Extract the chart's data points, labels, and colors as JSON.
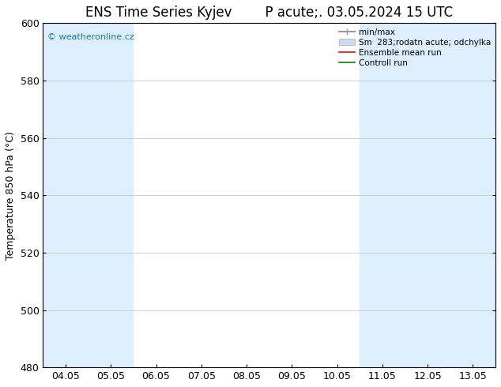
{
  "title_left": "ENS Time Series Kyjev",
  "title_right": "P acute;. 03.05.2024 15 UTC",
  "ylabel": "Temperature 850 hPa (°C)",
  "ylim": [
    480,
    600
  ],
  "yticks": [
    480,
    500,
    520,
    540,
    560,
    580,
    600
  ],
  "xticks": [
    "04.05",
    "05.05",
    "06.05",
    "07.05",
    "08.05",
    "09.05",
    "10.05",
    "11.05",
    "12.05",
    "13.05"
  ],
  "shaded_x_indices": [
    0,
    1,
    7,
    8,
    9
  ],
  "band_color": "#ddeeff",
  "watermark_text": "© weatheronline.cz",
  "watermark_color": "#1a78c2",
  "bg_color": "#ffffff",
  "grid_color": "#cccccc",
  "spine_color": "#000000",
  "legend_labels": [
    "min/max",
    "Sm  283;rodatn acute; odchylka",
    "Ensemble mean run",
    "Controll run"
  ],
  "legend_colors": [
    "#999999",
    "#c8ddf0",
    "#ff0000",
    "#008000"
  ],
  "title_fontsize": 12,
  "tick_fontsize": 9,
  "label_fontsize": 9,
  "legend_fontsize": 7.5
}
